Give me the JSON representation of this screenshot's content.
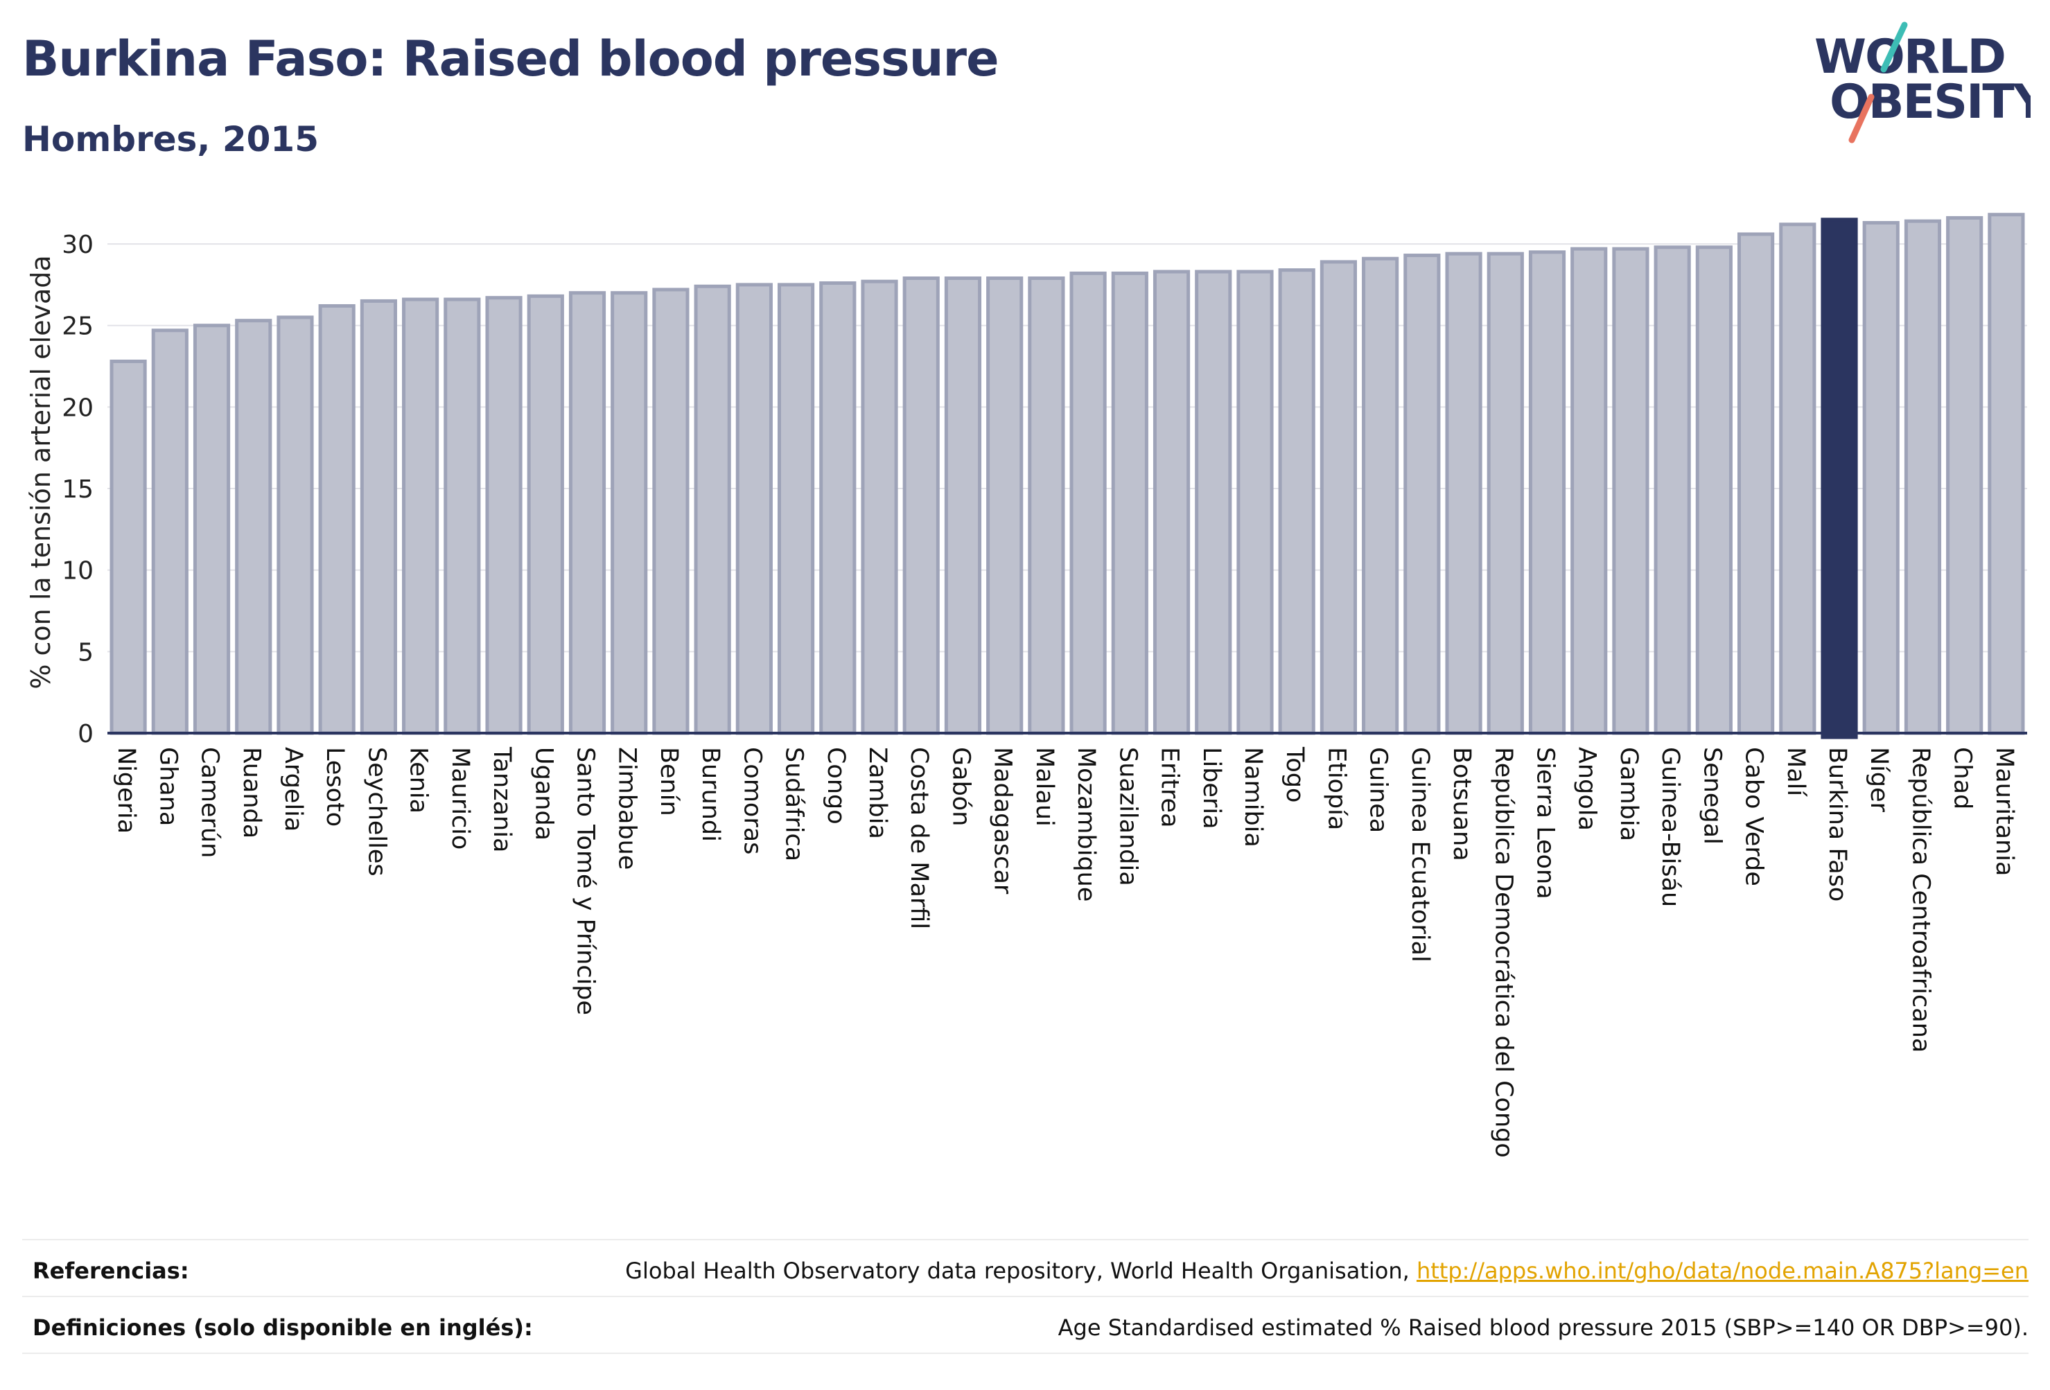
{
  "header": {
    "title": "Burkina Faso: Raised blood pressure",
    "subtitle": "Hombres, 2015"
  },
  "logo": {
    "line1": "WORLD",
    "line2": "OBESITY"
  },
  "chart_data": {
    "type": "bar",
    "ylabel": "% con la tensión arterial elevada",
    "xlabel": "",
    "ylim": [
      0,
      32
    ],
    "yticks": [
      0,
      5,
      10,
      15,
      20,
      25,
      30
    ],
    "grid": true,
    "highlight": "Burkina Faso",
    "colors": {
      "bar": "#bec1ce",
      "bar_border": "#9ea3b8",
      "highlight": "#2b3560",
      "grid": "#e3e3e8",
      "axis": "#2b3560"
    },
    "categories": [
      "Nigeria",
      "Ghana",
      "Camerún",
      "Ruanda",
      "Argelia",
      "Lesoto",
      "Seychelles",
      "Kenia",
      "Mauricio",
      "Tanzania",
      "Uganda",
      "Santo Tomé y Príncipe",
      "Zimbabue",
      "Benín",
      "Burundi",
      "Comoras",
      "Sudáfrica",
      "Congo",
      "Zambia",
      "Costa de Marfil",
      "Gabón",
      "Madagascar",
      "Malaui",
      "Mozambique",
      "Suazilandia",
      "Eritrea",
      "Liberia",
      "Namibia",
      "Togo",
      "Etiopía",
      "Guinea",
      "Guinea Ecuatorial",
      "Botsuana",
      "República Democrática del Congo",
      "Sierra Leona",
      "Angola",
      "Gambia",
      "Guinea-Bisáu",
      "Senegal",
      "Cabo Verde",
      "Malí",
      "Burkina Faso",
      "Níger",
      "República Centroafricana",
      "Chad",
      "Mauritania"
    ],
    "values": [
      22.8,
      24.7,
      25.0,
      25.3,
      25.5,
      26.2,
      26.5,
      26.6,
      26.6,
      26.7,
      26.8,
      27.0,
      27.0,
      27.2,
      27.4,
      27.5,
      27.5,
      27.6,
      27.7,
      27.9,
      27.9,
      27.9,
      27.9,
      28.2,
      28.2,
      28.3,
      28.3,
      28.3,
      28.4,
      28.9,
      29.1,
      29.3,
      29.4,
      29.4,
      29.5,
      29.7,
      29.7,
      29.8,
      29.8,
      30.6,
      31.2,
      31.5,
      31.3,
      31.4,
      31.6,
      31.8
    ]
  },
  "footer": {
    "references_label": "Referencias:",
    "references_text": "Global Health Observatory data repository, World Health Organisation, ",
    "references_link": "http://apps.who.int/gho/data/node.main.A875?lang=en",
    "definitions_label": "Definiciones (solo disponible en inglés):",
    "definitions_text": "Age Standardised estimated % Raised blood pressure 2015 (SBP>=140 OR DBP>=90)."
  }
}
